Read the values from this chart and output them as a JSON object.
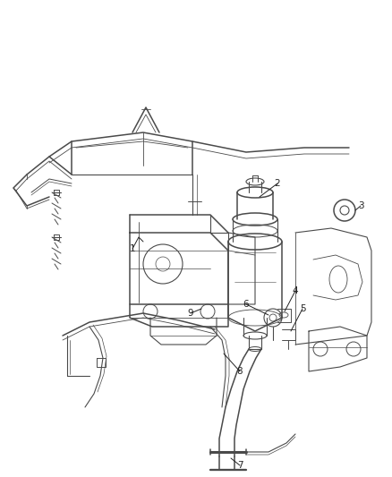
{
  "background_color": "#ffffff",
  "line_color": "#4a4a4a",
  "label_color": "#222222",
  "fig_width": 4.38,
  "fig_height": 5.33,
  "dpi": 100,
  "callout_fontsize": 7.5
}
